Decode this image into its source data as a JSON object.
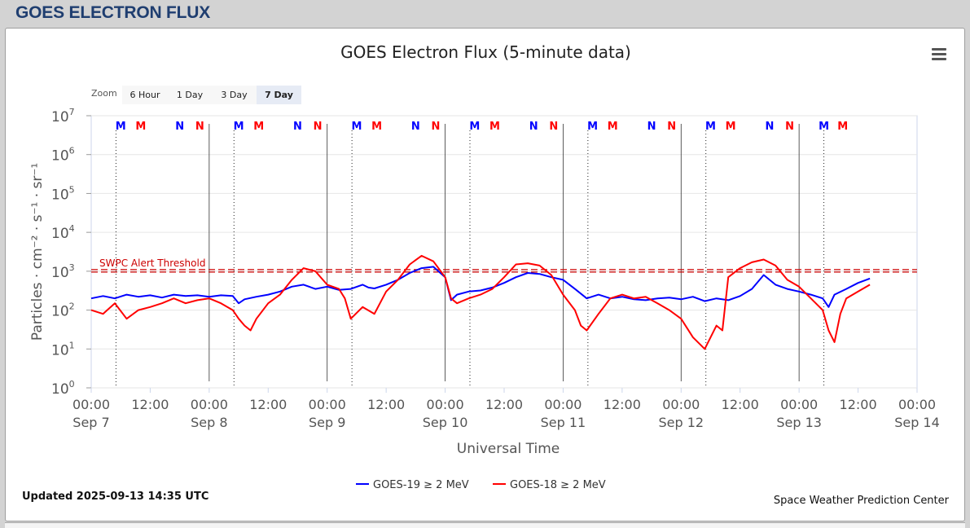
{
  "page_title": "GOES ELECTRON FLUX",
  "title": "GOES Electron Flux (5-minute data)",
  "zoom": {
    "label": "Zoom",
    "buttons": [
      "6 Hour",
      "1 Day",
      "3 Day",
      "7 Day"
    ],
    "active": "7 Day"
  },
  "updated": "Updated 2025-09-13 14:35 UTC",
  "credit": "Space Weather Prediction Center",
  "colors": {
    "goes19": "#0000ff",
    "goes18": "#ff0000",
    "threshold": "#cc0000",
    "grid": "#e6e6e6",
    "day_line": "#333333"
  },
  "chart_data": {
    "type": "line",
    "xlabel": "Universal Time",
    "ylabel": "Particles · cm⁻² · s⁻¹ · sr⁻¹",
    "yscale": "log",
    "ylim": [
      1,
      10000000
    ],
    "y_ticks": [
      {
        "base": "10",
        "exp": "0"
      },
      {
        "base": "10",
        "exp": "1"
      },
      {
        "base": "10",
        "exp": "2"
      },
      {
        "base": "10",
        "exp": "3"
      },
      {
        "base": "10",
        "exp": "4"
      },
      {
        "base": "10",
        "exp": "5"
      },
      {
        "base": "10",
        "exp": "6"
      },
      {
        "base": "10",
        "exp": "7"
      }
    ],
    "xlim": [
      "2025-09-07 00:00",
      "2025-09-14 00:00"
    ],
    "x_ticks": [
      {
        "time": "00:00",
        "date": "Sep 7"
      },
      {
        "time": "12:00",
        "date": ""
      },
      {
        "time": "00:00",
        "date": "Sep 8"
      },
      {
        "time": "12:00",
        "date": ""
      },
      {
        "time": "00:00",
        "date": "Sep 9"
      },
      {
        "time": "12:00",
        "date": ""
      },
      {
        "time": "00:00",
        "date": "Sep 10"
      },
      {
        "time": "12:00",
        "date": ""
      },
      {
        "time": "00:00",
        "date": "Sep 11"
      },
      {
        "time": "12:00",
        "date": ""
      },
      {
        "time": "00:00",
        "date": "Sep 12"
      },
      {
        "time": "12:00",
        "date": ""
      },
      {
        "time": "00:00",
        "date": "Sep 13"
      },
      {
        "time": "12:00",
        "date": ""
      },
      {
        "time": "00:00",
        "date": "Sep 14"
      }
    ],
    "threshold": {
      "label": "SWPC Alert Threshold",
      "value": 1000
    },
    "legend": [
      {
        "name": "GOES-19 ≥ 2 MeV",
        "color": "#0000ff"
      },
      {
        "name": "GOES-18 ≥ 2 MeV",
        "color": "#ff0000"
      }
    ],
    "legend_position": "bottom-center",
    "grid": true,
    "markers": [
      {
        "label": "M",
        "color": "#0000ff",
        "day": 0.25
      },
      {
        "label": "M",
        "color": "#ff0000",
        "day": 0.42
      },
      {
        "label": "N",
        "color": "#0000ff",
        "day": 0.75
      },
      {
        "label": "N",
        "color": "#ff0000",
        "day": 0.92
      },
      {
        "label": "M",
        "color": "#0000ff",
        "day": 1.25
      },
      {
        "label": "M",
        "color": "#ff0000",
        "day": 1.42
      },
      {
        "label": "N",
        "color": "#0000ff",
        "day": 1.75
      },
      {
        "label": "N",
        "color": "#ff0000",
        "day": 1.92
      },
      {
        "label": "M",
        "color": "#0000ff",
        "day": 2.25
      },
      {
        "label": "M",
        "color": "#ff0000",
        "day": 2.42
      },
      {
        "label": "N",
        "color": "#0000ff",
        "day": 2.75
      },
      {
        "label": "N",
        "color": "#ff0000",
        "day": 2.92
      },
      {
        "label": "M",
        "color": "#0000ff",
        "day": 3.25
      },
      {
        "label": "M",
        "color": "#ff0000",
        "day": 3.42
      },
      {
        "label": "N",
        "color": "#0000ff",
        "day": 3.75
      },
      {
        "label": "N",
        "color": "#ff0000",
        "day": 3.92
      },
      {
        "label": "M",
        "color": "#0000ff",
        "day": 4.25
      },
      {
        "label": "M",
        "color": "#ff0000",
        "day": 4.42
      },
      {
        "label": "N",
        "color": "#0000ff",
        "day": 4.75
      },
      {
        "label": "N",
        "color": "#ff0000",
        "day": 4.92
      },
      {
        "label": "M",
        "color": "#0000ff",
        "day": 5.25
      },
      {
        "label": "M",
        "color": "#ff0000",
        "day": 5.42
      },
      {
        "label": "N",
        "color": "#0000ff",
        "day": 5.75
      },
      {
        "label": "N",
        "color": "#ff0000",
        "day": 5.92
      },
      {
        "label": "M",
        "color": "#0000ff",
        "day": 6.21
      },
      {
        "label": "M",
        "color": "#ff0000",
        "day": 6.37
      }
    ],
    "dotted_lines_day": [
      0.21,
      1.21,
      2.21,
      3.21,
      4.21,
      5.21,
      6.21
    ],
    "series": [
      {
        "name": "GOES-19 ≥ 2 MeV",
        "color": "#0000ff",
        "x_day": [
          0.0,
          0.1,
          0.2,
          0.3,
          0.4,
          0.5,
          0.6,
          0.7,
          0.8,
          0.9,
          1.0,
          1.1,
          1.2,
          1.25,
          1.3,
          1.4,
          1.5,
          1.6,
          1.7,
          1.8,
          1.9,
          2.0,
          2.1,
          2.2,
          2.3,
          2.35,
          2.4,
          2.5,
          2.6,
          2.7,
          2.8,
          2.9,
          3.0,
          3.05,
          3.1,
          3.2,
          3.3,
          3.4,
          3.5,
          3.6,
          3.7,
          3.8,
          3.9,
          4.0,
          4.1,
          4.2,
          4.3,
          4.4,
          4.5,
          4.6,
          4.7,
          4.8,
          4.9,
          5.0,
          5.1,
          5.2,
          5.3,
          5.4,
          5.5,
          5.6,
          5.7,
          5.8,
          5.9,
          6.0,
          6.1,
          6.2,
          6.25,
          6.3,
          6.4,
          6.5,
          6.6
        ],
        "y": [
          200,
          230,
          200,
          250,
          220,
          240,
          210,
          250,
          230,
          240,
          220,
          240,
          230,
          150,
          190,
          220,
          250,
          300,
          400,
          450,
          350,
          400,
          330,
          350,
          450,
          380,
          360,
          450,
          600,
          900,
          1200,
          1300,
          700,
          180,
          250,
          300,
          320,
          380,
          500,
          700,
          900,
          850,
          700,
          600,
          350,
          200,
          250,
          200,
          220,
          190,
          180,
          200,
          210,
          190,
          220,
          170,
          200,
          180,
          230,
          350,
          800,
          450,
          350,
          300,
          250,
          200,
          120,
          250,
          350,
          500,
          650
        ]
      },
      {
        "name": "GOES-18 ≥ 2 MeV",
        "color": "#ff0000",
        "x_day": [
          0.0,
          0.1,
          0.2,
          0.3,
          0.4,
          0.5,
          0.6,
          0.7,
          0.8,
          0.9,
          1.0,
          1.1,
          1.2,
          1.25,
          1.3,
          1.35,
          1.4,
          1.5,
          1.6,
          1.7,
          1.8,
          1.9,
          2.0,
          2.1,
          2.15,
          2.2,
          2.3,
          2.4,
          2.5,
          2.6,
          2.7,
          2.8,
          2.9,
          3.0,
          3.05,
          3.1,
          3.2,
          3.3,
          3.4,
          3.5,
          3.6,
          3.7,
          3.8,
          3.9,
          4.0,
          4.1,
          4.15,
          4.2,
          4.3,
          4.4,
          4.5,
          4.6,
          4.7,
          4.8,
          4.9,
          5.0,
          5.1,
          5.2,
          5.25,
          5.3,
          5.35,
          5.4,
          5.5,
          5.6,
          5.7,
          5.8,
          5.9,
          6.0,
          6.1,
          6.2,
          6.25,
          6.3,
          6.35,
          6.4,
          6.5,
          6.6
        ],
        "y": [
          100,
          80,
          150,
          60,
          100,
          120,
          150,
          200,
          150,
          180,
          200,
          150,
          100,
          60,
          40,
          30,
          60,
          150,
          250,
          600,
          1200,
          1000,
          450,
          350,
          200,
          60,
          120,
          80,
          300,
          600,
          1500,
          2500,
          1800,
          700,
          200,
          150,
          200,
          250,
          350,
          700,
          1500,
          1600,
          1400,
          800,
          250,
          100,
          40,
          30,
          80,
          200,
          250,
          200,
          220,
          150,
          100,
          60,
          20,
          10,
          20,
          40,
          30,
          700,
          1200,
          1700,
          2000,
          1400,
          600,
          400,
          200,
          100,
          30,
          15,
          80,
          200,
          300,
          450
        ]
      }
    ]
  }
}
